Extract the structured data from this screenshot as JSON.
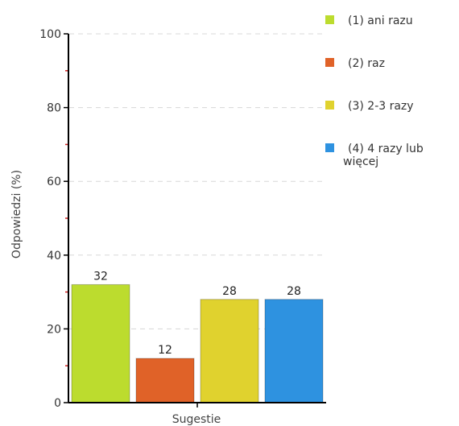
{
  "chart_data": {
    "type": "bar",
    "title": "",
    "xlabel": "Sugestie",
    "ylabel": "Odpowiedzi (%)",
    "ylim": [
      0,
      100
    ],
    "yticks": [
      0,
      20,
      40,
      60,
      80,
      100
    ],
    "grid": true,
    "legend_position": "right",
    "categories": [
      "(1) ani razu",
      "(2) raz",
      "(3) 2-3 razy",
      "(4) 4 razy lub więcej"
    ],
    "values": [
      32,
      12,
      28,
      28
    ],
    "data_labels": [
      "32",
      "12",
      "28",
      "28"
    ],
    "colors": [
      "#bcdc2e",
      "#e06228",
      "#e0d22e",
      "#2e92e0"
    ],
    "legend": [
      {
        "line1": "(1) ani razu",
        "line2": ""
      },
      {
        "line1": "(2) raz",
        "line2": ""
      },
      {
        "line1": "(3) 2-3 razy",
        "line2": ""
      },
      {
        "line1": "(4) 4 razy lub",
        "line2": "więcej"
      }
    ]
  }
}
